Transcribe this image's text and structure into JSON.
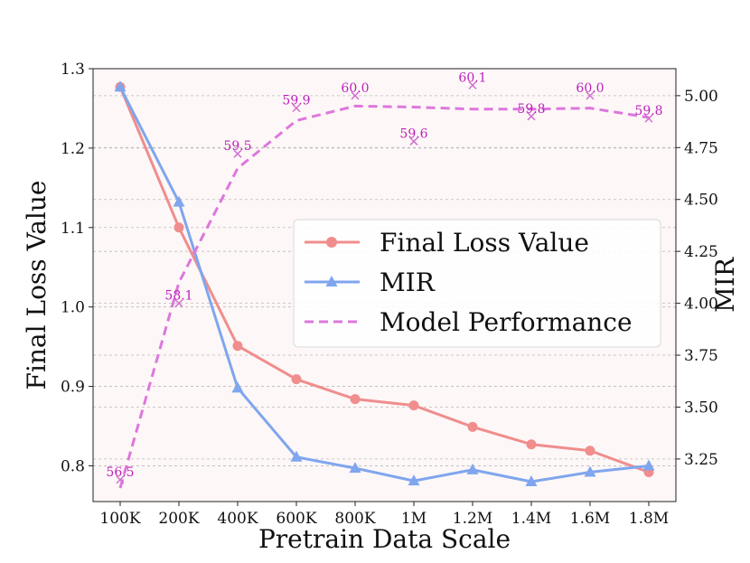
{
  "chart_data": {
    "type": "line",
    "categories": [
      "100K",
      "200K",
      "400K",
      "600K",
      "800K",
      "1M",
      "1.2M",
      "1.4M",
      "1.6M",
      "1.8M"
    ],
    "xlabel": "Pretrain Data Scale",
    "ylabel_left": "Final Loss Value",
    "ylabel_right": "MIR",
    "ylim_left": [
      0.755,
      1.3
    ],
    "ylim_right": [
      3.045,
      5.13
    ],
    "yticks_left": [
      "0.8",
      "0.9",
      "1.0",
      "1.1",
      "1.2",
      "1.3"
    ],
    "yticks_right": [
      "3.25",
      "3.50",
      "3.75",
      "4.00",
      "4.25",
      "4.50",
      "4.75",
      "5.00"
    ],
    "series": [
      {
        "name": "Final Loss Value",
        "axis": "left",
        "color": "#f08d8d",
        "marker": "circle",
        "style": "solid",
        "values": [
          1.277,
          1.1,
          0.951,
          0.909,
          0.884,
          0.876,
          0.849,
          0.827,
          0.819,
          0.792
        ]
      },
      {
        "name": "MIR",
        "axis": "left",
        "color": "#7fa6ee",
        "marker": "triangle",
        "style": "solid",
        "values": [
          1.277,
          1.132,
          0.898,
          0.811,
          0.797,
          0.781,
          0.795,
          0.78,
          0.792,
          0.8
        ]
      },
      {
        "name": "Model Performance",
        "axis": "right",
        "color": "#dd77dd",
        "marker": "none",
        "style": "dashed",
        "values": [
          3.11,
          4.1,
          4.65,
          4.88,
          4.95,
          4.945,
          4.935,
          4.935,
          4.94,
          4.895
        ]
      }
    ],
    "performance_points": [
      {
        "label": "56.5",
        "mir": 3.15
      },
      {
        "label": "58.1",
        "mir": 4.0
      },
      {
        "label": "59.5",
        "mir": 4.72
      },
      {
        "label": "59.9",
        "mir": 4.94
      },
      {
        "label": "60.0",
        "mir": 5.0
      },
      {
        "label": "59.6",
        "mir": 4.78
      },
      {
        "label": "60.1",
        "mir": 5.05
      },
      {
        "label": "59.8",
        "mir": 4.9
      },
      {
        "label": "60.0",
        "mir": 5.0
      },
      {
        "label": "59.8",
        "mir": 4.89
      }
    ],
    "legend": [
      "Final Loss Value",
      "MIR",
      "Model Performance"
    ],
    "legend_position": "center-right",
    "grid": true,
    "background": "#fdf7f7"
  }
}
